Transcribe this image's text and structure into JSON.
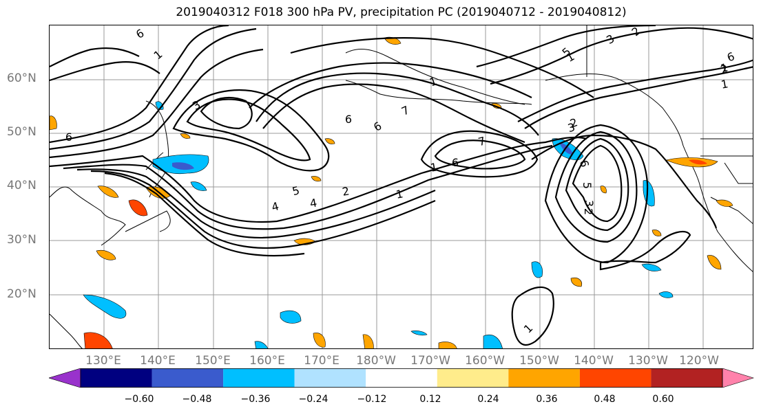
{
  "title": "2019040312 F018 300 hPa PV, precipitation PC (2019040712 - 2019040812)",
  "lat_labels": [
    "60°N",
    "50°N",
    "40°N",
    "30°N",
    "20°N"
  ],
  "lon_labels": [
    "130°E",
    "140°E",
    "150°E",
    "160°E",
    "170°E",
    "180°W",
    "170°W",
    "160°W",
    "150°W",
    "140°W",
    "130°W",
    "120°W"
  ],
  "contour_labels": [
    "6",
    "1",
    "3",
    "6",
    "4",
    "1",
    "1",
    "7",
    "6",
    "1",
    "6",
    "7",
    "6",
    "5",
    "4",
    "2",
    "3",
    "1",
    "2",
    "6",
    "5",
    "3",
    "2",
    "1",
    "5",
    "3",
    "2",
    "6",
    "1",
    "2",
    "1"
  ],
  "colorbar": {
    "colors": [
      "#9932cc",
      "#000080",
      "#3a5bcd",
      "#00bfff",
      "#b0e2ff",
      "#ffffff",
      "#ffec8b",
      "#ffa500",
      "#ff4500",
      "#b22222",
      "#ff82ab"
    ],
    "tick_labels": [
      "−0.60",
      "−0.48",
      "−0.36",
      "−0.24",
      "−0.12",
      "0.12",
      "0.24",
      "0.36",
      "0.48",
      "0.60"
    ]
  }
}
